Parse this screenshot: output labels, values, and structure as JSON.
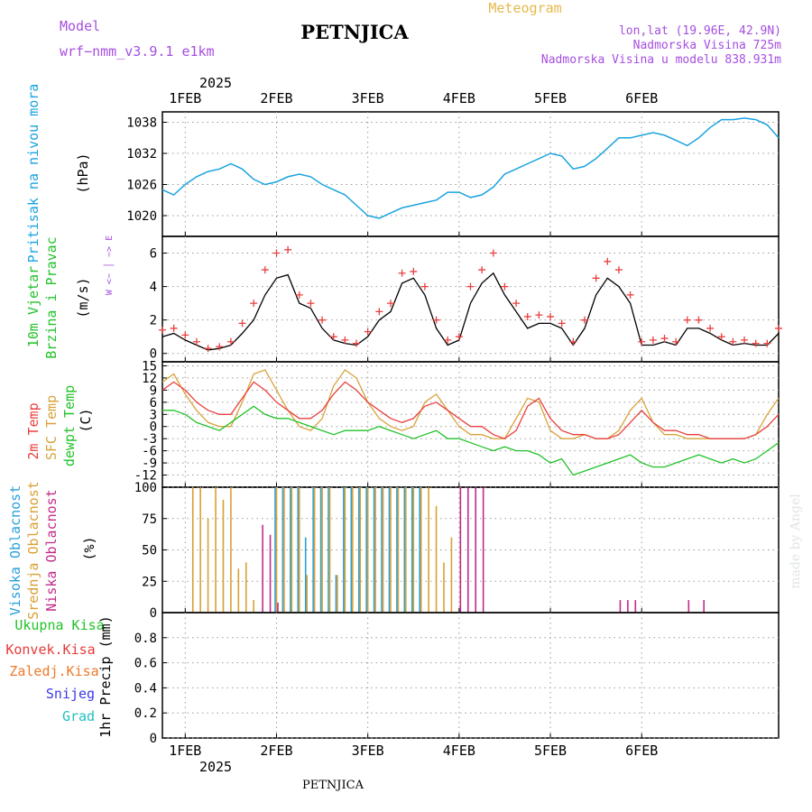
{
  "header": {
    "model_label": "Model",
    "model_name": "wrf−nmm_v3.9.1  e1km",
    "station": "PETNJICA",
    "product": "Meteogram",
    "lonlat": "lon,lat (19.96E, 42.9N)",
    "elevation": "Nadmorska Visina 725m",
    "model_elevation": "Nadmorska Visina u modelu 838.931m",
    "footer_station": "PETNJICA",
    "credit": "made by Angel"
  },
  "time_axis": {
    "year": "2025",
    "days": [
      "1FEB",
      "2FEB",
      "3FEB",
      "4FEB",
      "5FEB",
      "6FEB"
    ],
    "hour_range": [
      -6,
      156
    ]
  },
  "colors": {
    "pressure": "#1aa3e0",
    "wind_speed": "#000000",
    "gust": "#e8403f",
    "t2m": "#e8403f",
    "sfc": "#d8a33a",
    "dewpt": "#22c22a",
    "cloud_high": "#2aa0d8",
    "cloud_mid": "#d8a033",
    "cloud_low": "#c22a8a",
    "precip_total": "#22c22a",
    "precip_conv": "#e83a3a",
    "precip_frz": "#ee7a2a",
    "precip_snow": "#3a3ae8",
    "precip_grad": "#22bfbf",
    "title": "#000000",
    "meta": "#a64ee0",
    "product": "#e6b94a"
  },
  "chart_data": [
    {
      "type": "line",
      "panel": "pressure",
      "ylabel": "Pritisak na nivou mora",
      "units": "(hPa)",
      "ylim": [
        1016,
        1040
      ],
      "yticks": [
        1020,
        1026,
        1032,
        1038
      ],
      "x": [
        -6,
        -3,
        0,
        3,
        6,
        9,
        12,
        15,
        18,
        21,
        24,
        27,
        30,
        33,
        36,
        39,
        42,
        45,
        48,
        51,
        54,
        57,
        60,
        63,
        66,
        69,
        72,
        75,
        78,
        81,
        84,
        87,
        90,
        93,
        96,
        99,
        102,
        105,
        108,
        111,
        114,
        117,
        120,
        123,
        126,
        129,
        132,
        135,
        138,
        141,
        144,
        147,
        150,
        153,
        156
      ],
      "values": [
        1025,
        1024,
        1026,
        1027.5,
        1028.5,
        1029,
        1030,
        1029,
        1027,
        1026,
        1026.5,
        1027.5,
        1028,
        1027.5,
        1026,
        1025,
        1024,
        1022,
        1020,
        1019.5,
        1020.5,
        1021.5,
        1022,
        1022.5,
        1023,
        1024.5,
        1024.5,
        1023.5,
        1024,
        1025.5,
        1028,
        1029,
        1030,
        1031,
        1032,
        1031.5,
        1029,
        1029.5,
        1031,
        1033,
        1035,
        1035,
        1035.5,
        1036,
        1035.5,
        1034.5,
        1033.5,
        1035,
        1037,
        1038.5,
        1038.5,
        1038.8,
        1038.5,
        1037.5,
        1035
      ]
    },
    {
      "type": "line",
      "panel": "wind",
      "ylabel": "10m Vjetar",
      "ylabel2": "Brzina i Pravac",
      "units": "(m/s)",
      "compass": "W <− │ −> E",
      "ylim": [
        -0.5,
        7
      ],
      "yticks": [
        0,
        2,
        4,
        6
      ],
      "x": [
        -6,
        -3,
        0,
        3,
        6,
        9,
        12,
        15,
        18,
        21,
        24,
        27,
        30,
        33,
        36,
        39,
        42,
        45,
        48,
        51,
        54,
        57,
        60,
        63,
        66,
        69,
        72,
        75,
        78,
        81,
        84,
        87,
        90,
        93,
        96,
        99,
        102,
        105,
        108,
        111,
        114,
        117,
        120,
        123,
        126,
        129,
        132,
        135,
        138,
        141,
        144,
        147,
        150,
        153,
        156
      ],
      "series": [
        {
          "name": "speed",
          "values": [
            1,
            1.2,
            0.8,
            0.5,
            0.2,
            0.3,
            0.5,
            1.2,
            2,
            3.5,
            4.5,
            4.7,
            3,
            2.7,
            1.5,
            0.8,
            0.6,
            0.5,
            1,
            2,
            2.5,
            4.2,
            4.5,
            3.5,
            1.5,
            0.5,
            0.8,
            3,
            4.2,
            4.8,
            3.5,
            2.5,
            1.5,
            1.8,
            1.8,
            1.5,
            0.5,
            1.5,
            3.5,
            4.5,
            4,
            3,
            0.5,
            0.5,
            0.7,
            0.5,
            1.5,
            1.5,
            1.2,
            0.8,
            0.5,
            0.6,
            0.5,
            0.5,
            1.2
          ]
        },
        {
          "name": "gust",
          "values": [
            1.4,
            1.5,
            1.1,
            0.7,
            0.3,
            0.4,
            0.7,
            1.8,
            3,
            5,
            6,
            6.2,
            3.5,
            3,
            2,
            1,
            0.8,
            0.6,
            1.3,
            2.5,
            3,
            4.8,
            4.9,
            4,
            2,
            0.8,
            1,
            4,
            5,
            6,
            4,
            3,
            2.2,
            2.3,
            2.2,
            1.8,
            0.7,
            2,
            4.5,
            5.5,
            5,
            3.5,
            0.7,
            0.8,
            0.9,
            0.7,
            2,
            2,
            1.5,
            1,
            0.7,
            0.8,
            0.6,
            0.6,
            1.5
          ]
        }
      ]
    },
    {
      "type": "line",
      "panel": "temperature",
      "ylabels": [
        "2m Temp",
        "SFC Temp",
        "dewpt Temp"
      ],
      "units": "(C)",
      "ylim": [
        -15,
        16
      ],
      "yticks": [
        15,
        12,
        9,
        6,
        3,
        0,
        -3,
        -6,
        -9,
        -12
      ],
      "x": [
        -6,
        -3,
        0,
        3,
        6,
        9,
        12,
        15,
        18,
        21,
        24,
        27,
        30,
        33,
        36,
        39,
        42,
        45,
        48,
        51,
        54,
        57,
        60,
        63,
        66,
        69,
        72,
        75,
        78,
        81,
        84,
        87,
        90,
        93,
        96,
        99,
        102,
        105,
        108,
        111,
        114,
        117,
        120,
        123,
        126,
        129,
        132,
        135,
        138,
        141,
        144,
        147,
        150,
        153,
        156
      ],
      "series": [
        {
          "name": "2m",
          "values": [
            9,
            11,
            9,
            6,
            4,
            3,
            3,
            7,
            11,
            9,
            6,
            4,
            2,
            2,
            4,
            8,
            11,
            9,
            6,
            4,
            2,
            1,
            2,
            5,
            6,
            4,
            2,
            0,
            0,
            -2,
            -3,
            -1,
            5,
            7,
            2,
            -1,
            -2,
            -2,
            -3,
            -3,
            -2,
            1,
            4,
            1,
            -1,
            -1,
            -2,
            -2,
            -3,
            -3,
            -3,
            -3,
            -2,
            0,
            3
          ]
        },
        {
          "name": "sfc",
          "values": [
            11,
            13,
            8,
            4,
            1,
            0,
            0,
            6,
            13,
            14,
            9,
            4,
            0,
            -1,
            2,
            10,
            14,
            12,
            6,
            2,
            0,
            -1,
            0,
            6,
            8,
            4,
            0,
            -2,
            -2,
            -3,
            -3,
            2,
            7,
            6,
            -1,
            -3,
            -3,
            -2,
            -3,
            -3,
            -1,
            4,
            7,
            1,
            -2,
            -2,
            -3,
            -3,
            -3,
            -3,
            -3,
            -3,
            -2,
            3,
            7
          ]
        },
        {
          "name": "dewpt",
          "values": [
            4,
            4,
            3,
            1,
            0,
            -1,
            1,
            3,
            5,
            3,
            2,
            2,
            1,
            0,
            -1,
            -2,
            -1,
            -1,
            -1,
            0,
            -1,
            -2,
            -3,
            -2,
            -1,
            -3,
            -3,
            -4,
            -5,
            -6,
            -5,
            -6,
            -6,
            -7,
            -9,
            -8,
            -12,
            -11,
            -10,
            -9,
            -8,
            -7,
            -9,
            -10,
            -10,
            -9,
            -8,
            -7,
            -8,
            -9,
            -8,
            -9,
            -8,
            -6,
            -4
          ]
        }
      ]
    },
    {
      "type": "bar",
      "panel": "cloud",
      "ylabels": [
        "Visoka Oblacnost",
        "Srednja Oblacnost",
        "Niska Oblacnost"
      ],
      "units": "(%)",
      "ylim": [
        0,
        100
      ],
      "yticks": [
        0,
        25,
        50,
        75,
        100
      ],
      "x": [
        2,
        4,
        6,
        8,
        10,
        12,
        14,
        16,
        18,
        20,
        22,
        24,
        26,
        28,
        30,
        32,
        34,
        36,
        38,
        40,
        42,
        44,
        46,
        48,
        50,
        52,
        54,
        56,
        58,
        60,
        62,
        64,
        66,
        68,
        70,
        72,
        74,
        76,
        78,
        80,
        82,
        84,
        86,
        88,
        90,
        92,
        94,
        96,
        98,
        100,
        102,
        104,
        106,
        108,
        110,
        112,
        114,
        116,
        118,
        120,
        122,
        124,
        126,
        128,
        130,
        132,
        134,
        136,
        138,
        140,
        142,
        144,
        146,
        148,
        150,
        152,
        154,
        156
      ],
      "series": [
        {
          "name": "high",
          "values": [
            0,
            0,
            0,
            0,
            0,
            0,
            0,
            0,
            0,
            0,
            0,
            100,
            100,
            100,
            100,
            60,
            100,
            100,
            100,
            30,
            100,
            100,
            100,
            100,
            100,
            100,
            100,
            100,
            100,
            100,
            100,
            0,
            0,
            0,
            0,
            0,
            0,
            0,
            0,
            0,
            0,
            0,
            0,
            0,
            0,
            0,
            0,
            0,
            0,
            0,
            0,
            0,
            0,
            0,
            0,
            0,
            0,
            0,
            0,
            0,
            0,
            0,
            0,
            0,
            0,
            0,
            0,
            0,
            0,
            0,
            0,
            0,
            0,
            0,
            0,
            0,
            0,
            0
          ]
        },
        {
          "name": "mid",
          "values": [
            100,
            100,
            75,
            100,
            90,
            100,
            35,
            40,
            10,
            0,
            0,
            100,
            100,
            100,
            100,
            30,
            100,
            100,
            100,
            30,
            100,
            100,
            100,
            100,
            100,
            100,
            100,
            100,
            100,
            100,
            100,
            100,
            85,
            40,
            60,
            0,
            0,
            0,
            0,
            0,
            0,
            0,
            0,
            0,
            0,
            0,
            0,
            0,
            0,
            0,
            0,
            0,
            0,
            0,
            0,
            0,
            0,
            0,
            0,
            0,
            0,
            0,
            0,
            0,
            0,
            0,
            0,
            0,
            0,
            0,
            0,
            0,
            0,
            0,
            0,
            0,
            0,
            0
          ]
        },
        {
          "name": "low",
          "values": [
            0,
            0,
            0,
            0,
            0,
            0,
            0,
            0,
            0,
            70,
            62,
            8,
            0,
            0,
            0,
            0,
            0,
            0,
            0,
            0,
            0,
            0,
            0,
            0,
            0,
            0,
            0,
            0,
            0,
            0,
            0,
            0,
            0,
            0,
            0,
            100,
            100,
            100,
            100,
            0,
            0,
            0,
            0,
            0,
            0,
            0,
            0,
            0,
            0,
            0,
            0,
            0,
            0,
            0,
            0,
            0,
            10,
            10,
            10,
            0,
            0,
            0,
            0,
            0,
            0,
            10,
            0,
            10,
            0,
            0,
            0,
            0,
            0,
            0,
            0,
            0,
            0,
            0
          ]
        }
      ]
    },
    {
      "type": "bar",
      "panel": "precipitation",
      "legend": [
        "Ukupna Kisa",
        "Konvek.Kisa",
        "Zaledj.Kisa",
        "Snijeg",
        "Grad"
      ],
      "ylabel": "1hr Precip (mm)",
      "ylim": [
        0,
        1
      ],
      "yticks": [
        0,
        0.2,
        0.4,
        0.6,
        0.8
      ],
      "values": []
    }
  ]
}
